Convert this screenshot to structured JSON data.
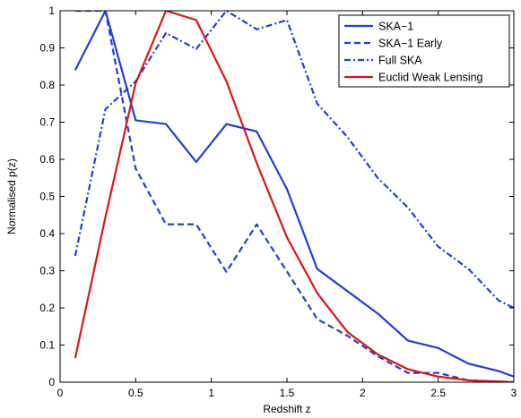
{
  "chart_data": {
    "type": "line",
    "title": "",
    "xlabel": "Redshift z",
    "ylabel": "Normalised p(z)",
    "xlim": [
      0,
      3
    ],
    "ylim": [
      0,
      1
    ],
    "xticks": [
      0,
      0.5,
      1,
      1.5,
      2,
      2.5,
      3
    ],
    "xtick_labels": [
      "0",
      "0.5",
      "1",
      "1.5",
      "2",
      "2.5",
      "3"
    ],
    "yticks": [
      0,
      0.1,
      0.2,
      0.3,
      0.4,
      0.5,
      0.6,
      0.7,
      0.8,
      0.9,
      1
    ],
    "ytick_labels": [
      "0",
      "0.1",
      "0.2",
      "0.3",
      "0.4",
      "0.5",
      "0.6",
      "0.7",
      "0.8",
      "0.9",
      "1"
    ],
    "grid": false,
    "legend_position": "top-right",
    "x": [
      0.1,
      0.3,
      0.5,
      0.7,
      0.9,
      1.1,
      1.3,
      1.5,
      1.7,
      1.9,
      2.1,
      2.3,
      2.5,
      2.7,
      2.9,
      3.0
    ],
    "series": [
      {
        "name": "SKA−1",
        "color": "#1f3fe0",
        "style": "solid",
        "values": [
          0.84,
          1.0,
          0.705,
          0.695,
          0.593,
          0.695,
          0.675,
          0.52,
          0.305,
          0.245,
          0.185,
          0.112,
          0.092,
          0.05,
          0.03,
          0.015
        ]
      },
      {
        "name": "SKA−1 Early",
        "color": "#1f3fe0",
        "style": "dashed",
        "values": [
          1.0,
          1.0,
          0.575,
          0.425,
          0.425,
          0.297,
          0.425,
          0.298,
          0.17,
          0.125,
          0.07,
          0.025,
          0.025,
          0.005,
          0.002,
          0.0
        ]
      },
      {
        "name": "Full SKA",
        "color": "#1f3fe0",
        "style": "dashdot",
        "values": [
          0.34,
          0.735,
          0.81,
          0.94,
          0.897,
          1.0,
          0.95,
          0.975,
          0.75,
          0.66,
          0.55,
          0.47,
          0.365,
          0.305,
          0.22,
          0.2
        ]
      },
      {
        "name": "Euclid Weak Lensing",
        "color": "#e01414",
        "style": "solid",
        "values": [
          0.065,
          0.445,
          0.805,
          1.0,
          0.975,
          0.81,
          0.59,
          0.39,
          0.24,
          0.135,
          0.075,
          0.035,
          0.015,
          0.005,
          0.002,
          0.0
        ]
      }
    ]
  }
}
